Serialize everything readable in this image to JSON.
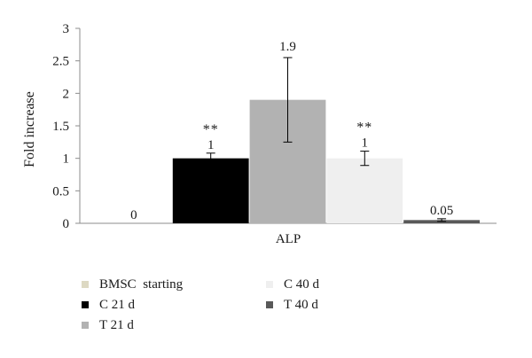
{
  "chart_data": {
    "type": "bar",
    "categories": [
      "ALP"
    ],
    "ylabel": "Fold increase",
    "ylim": [
      0,
      3
    ],
    "yticks": [
      "0",
      "0.5",
      "1",
      "1.5",
      "2",
      "2.5",
      "3"
    ],
    "grid": false,
    "legend_position": "bottom",
    "series": [
      {
        "name": "BMSC  starting",
        "values": [
          0
        ],
        "error": [
          0
        ],
        "label": "0",
        "significance": "",
        "color": "#ddd9c3"
      },
      {
        "name": "C 21 d",
        "values": [
          1.0
        ],
        "error": [
          0.08
        ],
        "label": "1",
        "significance": "**",
        "color": "#000000"
      },
      {
        "name": "T 21 d",
        "values": [
          1.9
        ],
        "error": [
          0.65
        ],
        "label": "1.9",
        "significance": "",
        "color": "#b2b2b2"
      },
      {
        "name": "C 40 d",
        "values": [
          1.0
        ],
        "error": [
          0.11
        ],
        "label": "1",
        "significance": "**",
        "color": "#efefef"
      },
      {
        "name": "T 40 d",
        "values": [
          0.05
        ],
        "error": [
          0.02
        ],
        "label": "0.05",
        "significance": "",
        "color": "#595959"
      }
    ]
  }
}
